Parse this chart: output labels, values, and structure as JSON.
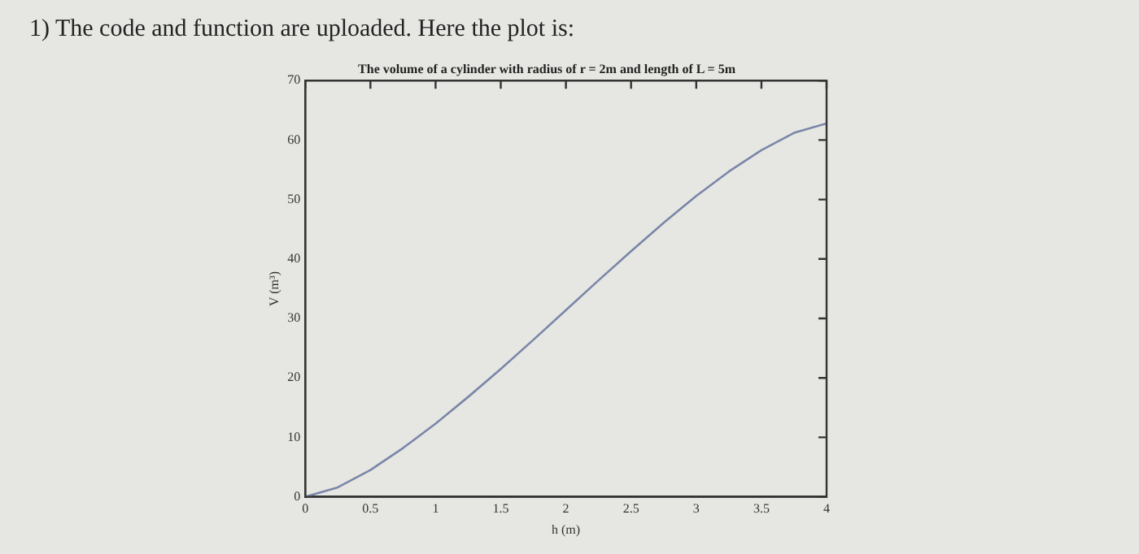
{
  "chart_data": {
    "type": "line",
    "title": "The volume of a cylinder with radius of r = 2m and length of L = 5m",
    "xlabel": "h (m)",
    "ylabel": "V (m³)",
    "annotations": [
      "1) The code and function are uploaded. Here the plot is:"
    ],
    "x": [
      0,
      0.25,
      0.5,
      0.75,
      1,
      1.25,
      1.5,
      1.75,
      2,
      2.25,
      2.5,
      2.75,
      3,
      3.25,
      3.5,
      3.75,
      4
    ],
    "series": [
      {
        "color": "#7a86a8",
        "values": [
          0,
          1.6,
          4.5,
          8.2,
          12.3,
          16.8,
          21.5,
          26.4,
          31.4,
          36.4,
          41.3,
          46.1,
          50.6,
          54.7,
          58.3,
          61.2,
          62.8
        ]
      }
    ],
    "xlim": [
      0,
      4
    ],
    "xticks": [
      0,
      0.5,
      1,
      1.5,
      2,
      2.5,
      3,
      3.5,
      4
    ],
    "ylim": [
      0,
      70
    ],
    "yticks": [
      0,
      10,
      20,
      30,
      40,
      50,
      60,
      70
    ],
    "grid": false,
    "legend": false,
    "marker": "none",
    "line_style": "solid"
  }
}
